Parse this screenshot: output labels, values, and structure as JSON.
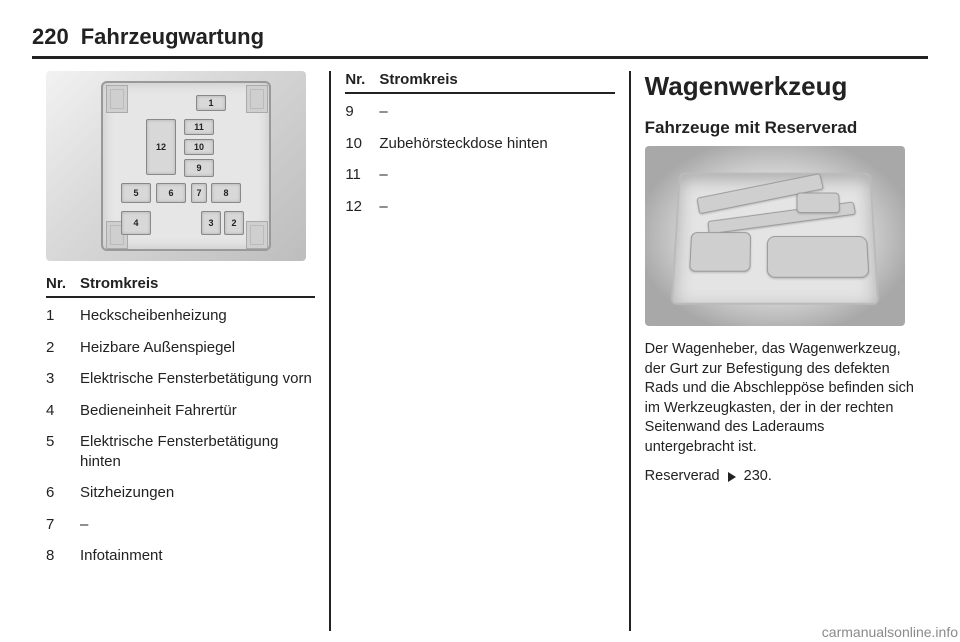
{
  "page_number": "220",
  "section": "Fahrzeugwartung",
  "watermark": "carmanualsonline.info",
  "fusebox_diagram": {
    "background_gradient": [
      "#f2f2f2",
      "#bdbdbd"
    ],
    "housing_color": "#e6e6e6",
    "fuse_labels": [
      "1",
      "2",
      "3",
      "4",
      "5",
      "6",
      "7",
      "8",
      "9",
      "10",
      "11",
      "12"
    ]
  },
  "table_left": {
    "header_nr": "Nr.",
    "header_desc": "Stromkreis",
    "rows": [
      {
        "nr": "1",
        "desc": "Heckscheibenheizung"
      },
      {
        "nr": "2",
        "desc": "Heizbare Außenspiegel"
      },
      {
        "nr": "3",
        "desc": "Elektrische Fensterbetätigung vorn"
      },
      {
        "nr": "4",
        "desc": "Bedieneinheit Fahrertür"
      },
      {
        "nr": "5",
        "desc": "Elektrische Fensterbetätigung hinten"
      },
      {
        "nr": "6",
        "desc": "Sitzheizungen"
      },
      {
        "nr": "7",
        "desc": "–"
      },
      {
        "nr": "8",
        "desc": "Infotainment"
      }
    ]
  },
  "table_mid": {
    "header_nr": "Nr.",
    "header_desc": "Stromkreis",
    "rows": [
      {
        "nr": "9",
        "desc": "–"
      },
      {
        "nr": "10",
        "desc": "Zubehörsteckdose hinten"
      },
      {
        "nr": "11",
        "desc": "–"
      },
      {
        "nr": "12",
        "desc": "–"
      }
    ]
  },
  "right": {
    "heading": "Wagenwerkzeug",
    "subheading": "Fahrzeuge mit Reserverad",
    "paragraph": "Der Wagenheber, das Wagenwerk­zeug, der Gurt zur Befestigung des defekten Rads und die Abschleppöse befinden sich im Werkzeugkasten, der in der rechten Seitenwand des Laderaums untergebracht ist.",
    "ref_label": "Reserverad",
    "ref_page": "230."
  }
}
